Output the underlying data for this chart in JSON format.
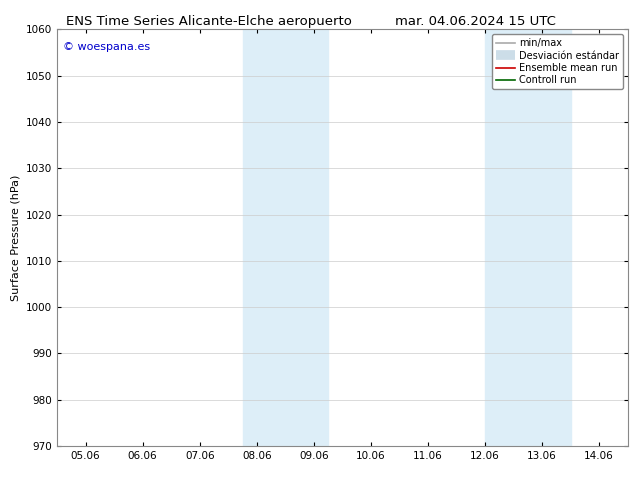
{
  "title_left": "ENS Time Series Alicante-Elche aeropuerto",
  "title_right": "mar. 04.06.2024 15 UTC",
  "ylabel": "Surface Pressure (hPa)",
  "ylim": [
    970,
    1060
  ],
  "yticks": [
    970,
    980,
    990,
    1000,
    1010,
    1020,
    1030,
    1040,
    1050,
    1060
  ],
  "xtick_labels": [
    "05.06",
    "06.06",
    "07.06",
    "08.06",
    "09.06",
    "10.06",
    "11.06",
    "12.06",
    "13.06",
    "14.06"
  ],
  "shaded_bands": [
    {
      "xmin": 3.0,
      "xmax": 3.5,
      "color": "#ddeaf5"
    },
    {
      "xmin": 3.5,
      "xmax": 4.5,
      "color": "#ddeaf5"
    },
    {
      "xmin": 7.5,
      "xmax": 8.0,
      "color": "#ddeaf5"
    },
    {
      "xmin": 8.0,
      "xmax": 8.5,
      "color": "#ddeaf5"
    }
  ],
  "watermark_text": "© woespana.es",
  "watermark_color": "#0000cc",
  "legend_labels": [
    "min/max",
    "Desviación estándar",
    "Ensemble mean run",
    "Controll run"
  ],
  "legend_colors": [
    "#aaaaaa",
    "#ccdde8",
    "#cc0000",
    "#006600"
  ],
  "background_color": "#ffffff",
  "grid_color": "#cccccc",
  "title_fontsize": 9.5,
  "ylabel_fontsize": 8,
  "tick_fontsize": 7.5,
  "legend_fontsize": 7
}
